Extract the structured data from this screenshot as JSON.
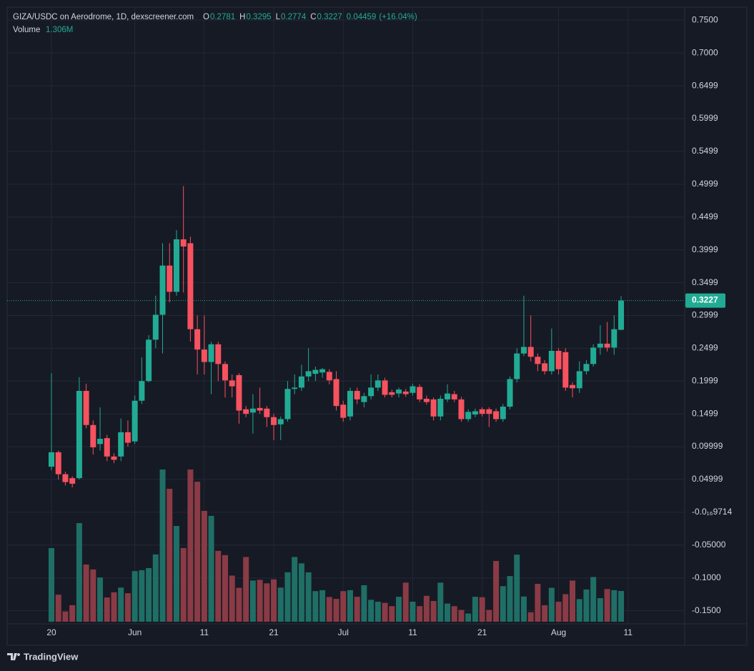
{
  "chart_data": {
    "type": "candlestick",
    "title": "GIZA/USDC on Aerodrome, 1D, dexscreener.com",
    "ohlc_letters": [
      "O",
      "H",
      "L",
      "C"
    ],
    "change": 0.04459,
    "change_pct": {
      "value": 16.04,
      "label": "(+16.04%)"
    },
    "volume_title": "Volume",
    "volume_text": "1.306M",
    "up_color": "#22ab94",
    "down_color": "#f7525f",
    "volume_up_color": "#1f6f66",
    "volume_down_color": "#8a3b45",
    "grid": true,
    "categories": [
      "May 20",
      "May 21",
      "May 22",
      "May 23",
      "May 24",
      "May 25",
      "May 26",
      "May 27",
      "May 28",
      "May 29",
      "May 30",
      "May 31",
      "Jun 1",
      "Jun 2",
      "Jun 3",
      "Jun 4",
      "Jun 5",
      "Jun 6",
      "Jun 7",
      "Jun 8",
      "Jun 9",
      "Jun 10",
      "Jun 11",
      "Jun 12",
      "Jun 13",
      "Jun 14",
      "Jun 15",
      "Jun 16",
      "Jun 17",
      "Jun 18",
      "Jun 19",
      "Jun 20",
      "Jun 21",
      "Jun 22",
      "Jun 23",
      "Jun 24",
      "Jun 25",
      "Jun 26",
      "Jun 27",
      "Jun 28",
      "Jun 29",
      "Jun 30",
      "Jul 1",
      "Jul 2",
      "Jul 3",
      "Jul 4",
      "Jul 5",
      "Jul 6",
      "Jul 7",
      "Jul 8",
      "Jul 9",
      "Jul 10",
      "Jul 11",
      "Jul 12",
      "Jul 13",
      "Jul 14",
      "Jul 15",
      "Jul 16",
      "Jul 17",
      "Jul 18",
      "Jul 19",
      "Jul 20",
      "Jul 21",
      "Jul 22",
      "Jul 23",
      "Jul 24",
      "Jul 25",
      "Jul 26",
      "Jul 27",
      "Jul 28",
      "Jul 29",
      "Jul 30",
      "Jul 31",
      "Aug 1",
      "Aug 2",
      "Aug 3",
      "Aug 4",
      "Aug 5",
      "Aug 6",
      "Aug 7",
      "Aug 8",
      "Aug 9",
      "Aug 10"
    ],
    "open": [
      0.0695,
      0.0915,
      0.058,
      0.052,
      0.052,
      0.185,
      0.133,
      0.104,
      0.113,
      0.085,
      0.085,
      0.122,
      0.108,
      0.17,
      0.2,
      0.263,
      0.301,
      0.376,
      0.336,
      0.416,
      0.41,
      0.279,
      0.248,
      0.229,
      0.256,
      0.226,
      0.201,
      0.209,
      0.157,
      0.152,
      0.159,
      0.158,
      0.145,
      0.134,
      0.142,
      0.188,
      0.19,
      0.207,
      0.211,
      0.213,
      0.214,
      0.203,
      0.164,
      0.146,
      0.185,
      0.168,
      0.177,
      0.19,
      0.201,
      0.183,
      0.181,
      0.184,
      0.182,
      0.191,
      0.173,
      0.172,
      0.146,
      0.172,
      0.18,
      0.172,
      0.142,
      0.149,
      0.157,
      0.157,
      0.154,
      0.142,
      0.161,
      0.203,
      0.242,
      0.252,
      0.237,
      0.227,
      0.215,
      0.246,
      0.244,
      0.194,
      0.189,
      0.215,
      0.226,
      0.251,
      0.257,
      0.251,
      0.2781
    ],
    "high": [
      0.212,
      0.094,
      0.062,
      0.055,
      0.206,
      0.196,
      0.14,
      0.16,
      0.118,
      0.09,
      0.143,
      0.14,
      0.178,
      0.236,
      0.27,
      0.33,
      0.41,
      0.41,
      0.43,
      0.497,
      0.42,
      0.3,
      0.3,
      0.26,
      0.26,
      0.23,
      0.21,
      0.212,
      0.162,
      0.18,
      0.19,
      0.162,
      0.15,
      0.146,
      0.2,
      0.21,
      0.225,
      0.25,
      0.222,
      0.22,
      0.218,
      0.215,
      0.17,
      0.19,
      0.19,
      0.182,
      0.21,
      0.21,
      0.205,
      0.187,
      0.19,
      0.188,
      0.196,
      0.195,
      0.178,
      0.175,
      0.178,
      0.195,
      0.185,
      0.176,
      0.157,
      0.158,
      0.16,
      0.16,
      0.158,
      0.165,
      0.207,
      0.25,
      0.33,
      0.3,
      0.242,
      0.232,
      0.28,
      0.25,
      0.25,
      0.198,
      0.23,
      0.232,
      0.256,
      0.285,
      0.29,
      0.3,
      0.3295
    ],
    "low": [
      0.064,
      0.05,
      0.041,
      0.038,
      0.05,
      0.128,
      0.088,
      0.094,
      0.078,
      0.075,
      0.078,
      0.1,
      0.104,
      0.165,
      0.198,
      0.25,
      0.242,
      0.32,
      0.33,
      0.335,
      0.26,
      0.21,
      0.21,
      0.18,
      0.2,
      0.175,
      0.175,
      0.135,
      0.145,
      0.12,
      0.15,
      0.13,
      0.11,
      0.11,
      0.138,
      0.18,
      0.185,
      0.2,
      0.2,
      0.205,
      0.195,
      0.155,
      0.138,
      0.14,
      0.165,
      0.16,
      0.172,
      0.185,
      0.175,
      0.175,
      0.175,
      0.176,
      0.178,
      0.168,
      0.164,
      0.14,
      0.14,
      0.168,
      0.168,
      0.138,
      0.138,
      0.145,
      0.146,
      0.13,
      0.138,
      0.138,
      0.157,
      0.198,
      0.238,
      0.23,
      0.215,
      0.21,
      0.21,
      0.21,
      0.185,
      0.175,
      0.182,
      0.21,
      0.222,
      0.24,
      0.245,
      0.24,
      0.2774
    ],
    "close": [
      0.0915,
      0.058,
      0.046,
      0.0435,
      0.185,
      0.133,
      0.099,
      0.112,
      0.085,
      0.08,
      0.122,
      0.106,
      0.17,
      0.2,
      0.263,
      0.301,
      0.376,
      0.336,
      0.416,
      0.405,
      0.279,
      0.248,
      0.229,
      0.256,
      0.226,
      0.201,
      0.192,
      0.155,
      0.15,
      0.158,
      0.155,
      0.145,
      0.133,
      0.142,
      0.188,
      0.19,
      0.207,
      0.215,
      0.217,
      0.218,
      0.201,
      0.162,
      0.144,
      0.185,
      0.172,
      0.177,
      0.19,
      0.201,
      0.179,
      0.179,
      0.187,
      0.18,
      0.192,
      0.172,
      0.168,
      0.146,
      0.173,
      0.181,
      0.172,
      0.142,
      0.153,
      0.154,
      0.15,
      0.15,
      0.142,
      0.161,
      0.203,
      0.242,
      0.252,
      0.237,
      0.226,
      0.215,
      0.246,
      0.218,
      0.19,
      0.189,
      0.215,
      0.226,
      0.251,
      0.257,
      0.251,
      0.279,
      0.3227
    ],
    "volume": [
      3.13,
      1.15,
      0.43,
      0.7,
      4.19,
      2.43,
      2.22,
      1.88,
      1.03,
      1.25,
      1.45,
      1.21,
      2.15,
      2.19,
      2.28,
      2.86,
      6.47,
      5.65,
      4.07,
      3.13,
      6.47,
      5.95,
      4.71,
      4.5,
      3.01,
      2.83,
      1.96,
      1.44,
      2.75,
      1.75,
      1.78,
      1.63,
      1.8,
      1.45,
      2.1,
      2.75,
      2.48,
      2.1,
      1.3,
      1.34,
      1.05,
      0.97,
      1.3,
      1.34,
      1.06,
      1.55,
      0.93,
      0.85,
      0.8,
      0.66,
      1.06,
      1.66,
      0.85,
      0.66,
      1.1,
      0.88,
      1.66,
      0.77,
      0.66,
      0.5,
      0.35,
      1.06,
      1.04,
      0.5,
      2.58,
      1.51,
      1.94,
      2.85,
      1.07,
      0.4,
      1.61,
      0.7,
      1.44,
      0.85,
      1.17,
      1.75,
      0.96,
      1.37,
      1.9,
      1.0,
      1.39,
      1.34,
      1.306
    ],
    "ylim": [
      -0.17,
      0.7698
    ],
    "yticks": [
      {
        "value": 0.75,
        "label": "0.7500"
      },
      {
        "value": 0.7,
        "label": "0.7000"
      },
      0.6499,
      0.5999,
      0.5499,
      0.4999,
      0.4499,
      0.3999,
      0.3499,
      0.2999,
      0.2499,
      0.1999,
      0.1499,
      0.09999,
      0.04999,
      {
        "value": -9.714e-17,
        "label": "-0.0₁₆9714"
      },
      {
        "value": -0.05,
        "label": "-0.05000"
      },
      {
        "value": -0.1,
        "label": "-0.1000"
      },
      {
        "value": -0.15,
        "label": "-0.1500"
      }
    ],
    "xticks": [
      {
        "value": "May 20",
        "label": "20"
      },
      {
        "value": "Jun 1",
        "label": "Jun"
      },
      {
        "value": "Jun 11",
        "label": "11"
      },
      {
        "value": "Jun 21",
        "label": "21"
      },
      {
        "value": "Jul 1",
        "label": "Jul"
      },
      {
        "value": "Jul 11",
        "label": "11"
      },
      {
        "value": "Jul 21",
        "label": "21"
      },
      {
        "value": "Aug 1",
        "label": "Aug"
      },
      {
        "value": "Aug 11",
        "label": "11"
      }
    ]
  },
  "footer": {
    "brand": "TradingView"
  }
}
